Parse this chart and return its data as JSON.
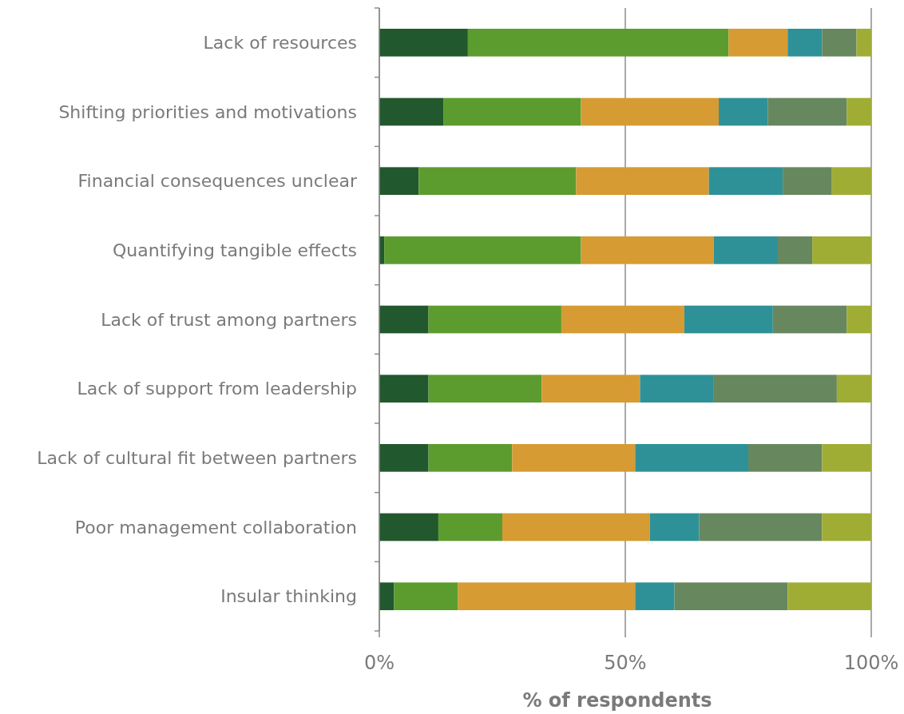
{
  "chart_data": {
    "type": "bar",
    "orientation": "horizontal",
    "stacked": true,
    "xlabel": "% of respondents",
    "categories": [
      "Lack of resources",
      "Shifting priorities and motivations",
      "Financial consequences unclear",
      "Quantifying tangible effects",
      "Lack of trust among partners",
      "Lack of support from leadership",
      "Lack of cultural fit between partners",
      "Poor management collaboration",
      "Insular thinking"
    ],
    "series": [
      {
        "color": "#22582d",
        "values": [
          18,
          13,
          8,
          1,
          10,
          10,
          10,
          12,
          3
        ]
      },
      {
        "color": "#5c9c2e",
        "values": [
          53,
          28,
          32,
          40,
          27,
          23,
          17,
          13,
          13
        ]
      },
      {
        "color": "#d69b32",
        "values": [
          12,
          28,
          27,
          27,
          25,
          20,
          25,
          30,
          36
        ]
      },
      {
        "color": "#2e9198",
        "values": [
          7,
          10,
          15,
          13,
          18,
          15,
          23,
          10,
          8
        ]
      },
      {
        "color": "#67875f",
        "values": [
          7,
          16,
          10,
          7,
          15,
          25,
          15,
          25,
          23
        ]
      },
      {
        "color": "#a0ad35",
        "values": [
          3,
          5,
          8,
          12,
          5,
          7,
          10,
          10,
          17
        ]
      }
    ],
    "xlim": [
      0,
      100
    ],
    "xticks": [
      {
        "value": 0,
        "label": "0%"
      },
      {
        "value": 50,
        "label": "50%"
      },
      {
        "value": 100,
        "label": "100%"
      }
    ],
    "grid": "x"
  }
}
